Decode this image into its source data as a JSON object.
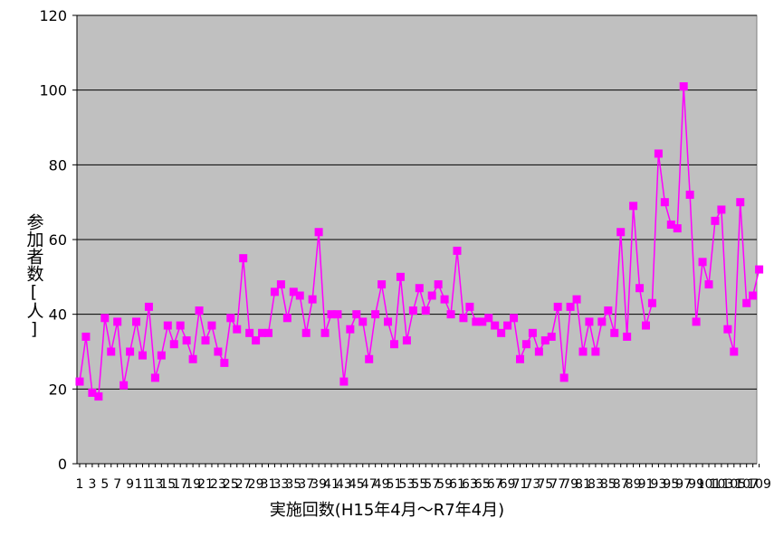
{
  "chart_data": {
    "type": "line",
    "title": "",
    "xlabel": "実施回数(H15年4月～R7年4月)",
    "ylabel": "参加者数[人]",
    "ylim": [
      0,
      120
    ],
    "yticks": [
      0,
      20,
      40,
      60,
      80,
      100,
      120
    ],
    "x_start": 1,
    "x_end": 109,
    "x_tick_labels": [
      "1",
      "3",
      "5",
      "7",
      "9",
      "11",
      "13",
      "15",
      "17",
      "19",
      "21",
      "23",
      "25",
      "27",
      "29",
      "31",
      "33",
      "35",
      "37",
      "39",
      "41",
      "43",
      "45",
      "47",
      "49",
      "51",
      "53",
      "55",
      "57",
      "59",
      "61",
      "63",
      "65",
      "67",
      "69",
      "71",
      "73",
      "75",
      "77",
      "79",
      "81",
      "83",
      "85",
      "87",
      "89",
      "91",
      "93",
      "95",
      "97",
      "99",
      "101",
      "103",
      "105",
      "107",
      "109"
    ],
    "grid": true,
    "colors": {
      "plot_bg": "#c0c0c0",
      "series": "#ff00ff",
      "gridline": "#000000"
    },
    "series": [
      {
        "marker": "square",
        "values": [
          22,
          34,
          19,
          18,
          39,
          30,
          38,
          21,
          30,
          38,
          29,
          42,
          23,
          29,
          37,
          32,
          37,
          33,
          28,
          41,
          33,
          37,
          30,
          27,
          39,
          36,
          55,
          35,
          33,
          35,
          35,
          46,
          48,
          39,
          46,
          45,
          35,
          44,
          62,
          35,
          40,
          40,
          22,
          36,
          40,
          38,
          28,
          40,
          48,
          38,
          32,
          50,
          33,
          41,
          47,
          41,
          45,
          48,
          44,
          40,
          57,
          39,
          42,
          38,
          38,
          39,
          37,
          35,
          37,
          39,
          28,
          32,
          35,
          30,
          33,
          34,
          42,
          23,
          42,
          44,
          30,
          38,
          30,
          38,
          41,
          35,
          62,
          34,
          69,
          47,
          37,
          43,
          83,
          70,
          64,
          63,
          101,
          72,
          38,
          54,
          48,
          65,
          68,
          36,
          30,
          70,
          43,
          45,
          52
        ]
      }
    ]
  }
}
